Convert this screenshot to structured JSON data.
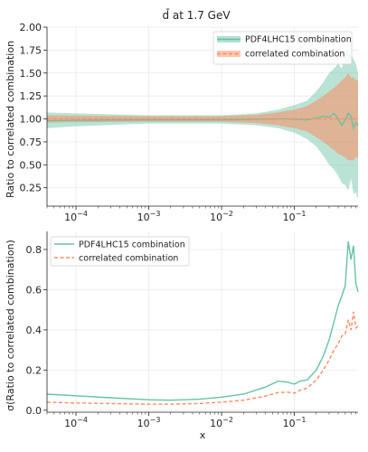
{
  "chart_data": [
    {
      "type": "area",
      "title": "d̄ at 1.7 GeV",
      "xlabel": "",
      "ylabel": "Ratio to correlated combination",
      "xscale": "log",
      "xlim": [
        4e-05,
        0.75
      ],
      "ylim": [
        0.05,
        2.0
      ],
      "yticks": [
        0.25,
        0.5,
        0.75,
        1.0,
        1.25,
        1.5,
        1.75,
        2.0
      ],
      "ytick_labels": [
        "0.25",
        "0.50",
        "0.75",
        "1.00",
        "1.25",
        "1.50",
        "1.75",
        "2.00"
      ],
      "xtick_labels": [
        "10^-4",
        "10^-3",
        "10^-2",
        "10^-1"
      ],
      "grid": true,
      "legend": "top-right",
      "series": [
        {
          "name": "PDF4LHC15 combination",
          "color": "#66c2a5",
          "x": [
            4e-05,
            0.0001,
            0.001,
            0.01,
            0.03,
            0.06,
            0.08,
            0.1,
            0.15,
            0.2,
            0.25,
            0.3,
            0.35,
            0.4,
            0.45,
            0.5,
            0.55,
            0.6,
            0.65,
            0.7,
            0.75
          ],
          "central": [
            0.98,
            0.985,
            0.99,
            0.99,
            0.995,
            1.0,
            1.0,
            0.995,
            0.99,
            1.01,
            1.03,
            1.02,
            1.06,
            1.0,
            0.93,
            0.99,
            1.06,
            1.03,
            0.9,
            0.96,
            0.93
          ],
          "lower": [
            0.9,
            0.92,
            0.95,
            0.95,
            0.93,
            0.9,
            0.87,
            0.85,
            0.78,
            0.7,
            0.6,
            0.5,
            0.45,
            0.38,
            0.3,
            0.28,
            0.22,
            0.35,
            0.18,
            0.2,
            0.12
          ],
          "upper": [
            1.07,
            1.06,
            1.04,
            1.04,
            1.06,
            1.1,
            1.13,
            1.15,
            1.2,
            1.3,
            1.4,
            1.5,
            1.55,
            1.6,
            1.55,
            1.7,
            1.75,
            1.7,
            1.65,
            1.6,
            1.5
          ]
        },
        {
          "name": "correlated combination",
          "color": "#fc8d62",
          "x": [
            4e-05,
            0.0001,
            0.001,
            0.01,
            0.03,
            0.06,
            0.08,
            0.1,
            0.15,
            0.2,
            0.25,
            0.3,
            0.35,
            0.4,
            0.45,
            0.5,
            0.55,
            0.6,
            0.65,
            0.7,
            0.75
          ],
          "central": [
            1.0,
            1.0,
            1.0,
            1.0,
            1.0,
            1.0,
            1.0,
            1.0,
            1.0,
            1.0,
            1.0,
            1.0,
            1.0,
            1.0,
            1.0,
            1.0,
            1.0,
            1.0,
            1.0,
            1.0,
            1.0
          ],
          "lower": [
            0.96,
            0.965,
            0.97,
            0.97,
            0.955,
            0.93,
            0.91,
            0.9,
            0.86,
            0.8,
            0.75,
            0.7,
            0.66,
            0.62,
            0.6,
            0.58,
            0.55,
            0.55,
            0.55,
            0.58,
            0.58
          ],
          "upper": [
            1.04,
            1.035,
            1.03,
            1.03,
            1.045,
            1.07,
            1.09,
            1.1,
            1.14,
            1.2,
            1.25,
            1.3,
            1.34,
            1.38,
            1.42,
            1.45,
            1.5,
            1.45,
            1.45,
            1.42,
            1.42
          ]
        }
      ]
    },
    {
      "type": "line",
      "xlabel": "x",
      "ylabel": "σ(Ratio to correlated combination)",
      "xscale": "log",
      "xlim": [
        4e-05,
        0.75
      ],
      "ylim": [
        -0.01,
        0.89
      ],
      "yticks": [
        0.0,
        0.2,
        0.4,
        0.6,
        0.8
      ],
      "ytick_labels": [
        "0.0",
        "0.2",
        "0.4",
        "0.6",
        "0.8"
      ],
      "xtick_labels": [
        "10^-4",
        "10^-3",
        "10^-2",
        "10^-1"
      ],
      "grid": true,
      "legend": "top-left",
      "series": [
        {
          "name": "PDF4LHC15 combination",
          "color": "#66c2a5",
          "style": "solid",
          "x": [
            4e-05,
            0.0001,
            0.0003,
            0.001,
            0.002,
            0.005,
            0.01,
            0.02,
            0.04,
            0.06,
            0.08,
            0.1,
            0.12,
            0.15,
            0.2,
            0.25,
            0.3,
            0.35,
            0.4,
            0.45,
            0.5,
            0.55,
            0.6,
            0.65,
            0.7,
            0.75
          ],
          "y": [
            0.08,
            0.072,
            0.062,
            0.052,
            0.05,
            0.055,
            0.065,
            0.08,
            0.115,
            0.145,
            0.14,
            0.13,
            0.145,
            0.15,
            0.2,
            0.27,
            0.35,
            0.44,
            0.52,
            0.57,
            0.62,
            0.84,
            0.75,
            0.82,
            0.63,
            0.59
          ]
        },
        {
          "name": "correlated combination",
          "color": "#fc8d62",
          "style": "dashed",
          "x": [
            4e-05,
            0.0001,
            0.0003,
            0.001,
            0.002,
            0.005,
            0.01,
            0.02,
            0.04,
            0.06,
            0.08,
            0.1,
            0.12,
            0.15,
            0.2,
            0.25,
            0.3,
            0.35,
            0.4,
            0.45,
            0.5,
            0.55,
            0.6,
            0.65,
            0.7,
            0.75
          ],
          "y": [
            0.04,
            0.036,
            0.033,
            0.03,
            0.03,
            0.033,
            0.04,
            0.05,
            0.07,
            0.088,
            0.09,
            0.085,
            0.1,
            0.11,
            0.15,
            0.2,
            0.25,
            0.3,
            0.33,
            0.37,
            0.38,
            0.45,
            0.4,
            0.49,
            0.41,
            0.42
          ]
        }
      ]
    }
  ]
}
